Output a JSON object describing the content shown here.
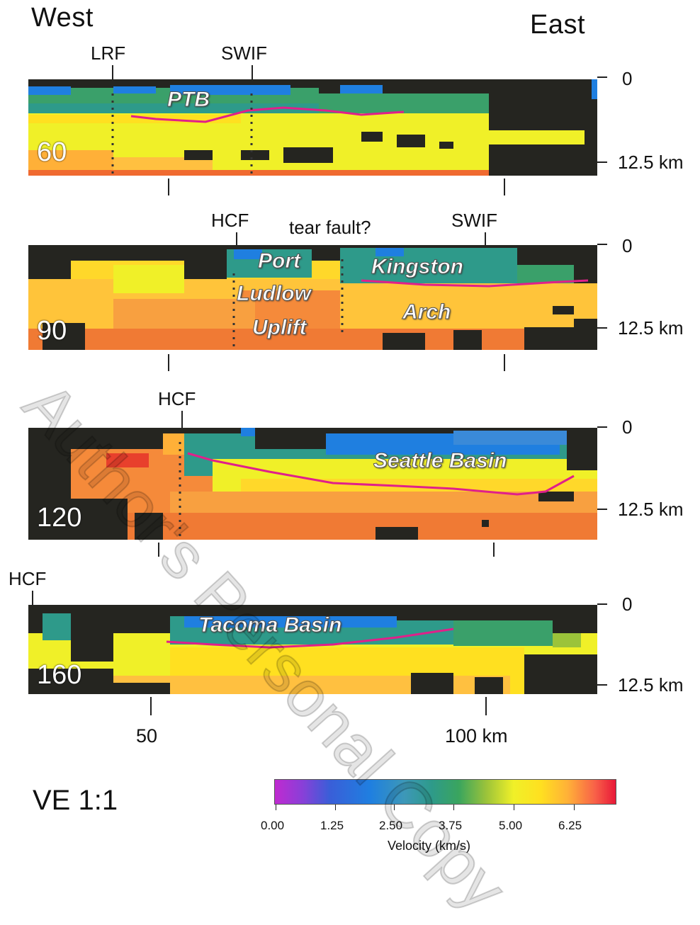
{
  "header": {
    "west": "West",
    "east": "East"
  },
  "panels": [
    {
      "profile": "60",
      "faults": [
        "LRF",
        "SWIF"
      ],
      "features": [
        "PTB"
      ],
      "depth_top": "0",
      "depth_bottom": "12.5 km"
    },
    {
      "profile": "90",
      "faults": [
        "HCF",
        "tear fault?",
        "SWIF"
      ],
      "features": [
        "Port",
        "Ludlow",
        "Uplift",
        "Kingston",
        "Arch"
      ],
      "depth_top": "0",
      "depth_bottom": "12.5 km"
    },
    {
      "profile": "120",
      "faults": [
        "HCF"
      ],
      "features": [
        "Seattle Basin"
      ],
      "depth_top": "0",
      "depth_bottom": "12.5 km"
    },
    {
      "profile": "160",
      "faults": [
        "HCF"
      ],
      "features": [
        "Tacoma Basin"
      ],
      "depth_top": "0",
      "depth_bottom": "12.5 km"
    }
  ],
  "x_axis": {
    "ticks": [
      "50",
      "100 km"
    ]
  },
  "ve": "VE 1:1",
  "colorbar": {
    "title": "Velocity (km/s)",
    "ticks": [
      "0.00",
      "1.25",
      "2.50",
      "3.75",
      "5.00",
      "6.25"
    ],
    "colors": [
      "#c02ad0",
      "#1f7fe0",
      "#2e9a8a",
      "#f0f028",
      "#ffb038",
      "#e81838"
    ]
  },
  "watermark": "Author's Personal Copy",
  "colors": {
    "background_rock": "#252520",
    "low_velocity": "#1f7fe0",
    "sediment": "#2e9a8a",
    "basement": "#f0f028",
    "high_velocity": "#f06a30",
    "basin_contour": "#e0208a"
  }
}
